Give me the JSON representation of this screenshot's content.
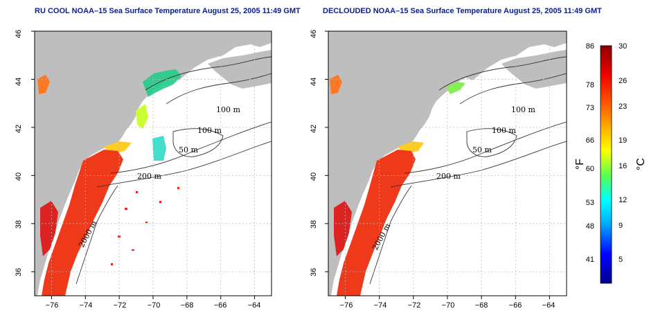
{
  "panels": [
    {
      "id": "left",
      "title": "RU COOL NOAA–15 Sea Surface Temperature August 25, 2005 11:49 GMT",
      "contour_labels": [
        "100 m",
        "100 m",
        "50 m",
        "200 m",
        "2000 m"
      ]
    },
    {
      "id": "right",
      "title": "DECLOUDED NOAA–15 Sea Surface Temperature August 25, 2005 11:49 GMT",
      "contour_labels": [
        "100 m",
        "100 m",
        "50 m",
        "200 m",
        "2000 m"
      ]
    }
  ],
  "axes": {
    "lon_ticks": [
      "−76",
      "−74",
      "−72",
      "−70",
      "−68",
      "−66",
      "−64"
    ],
    "lat_ticks": [
      "46",
      "44",
      "42",
      "40",
      "38",
      "36"
    ],
    "lon_range": [
      -77,
      -63
    ],
    "lat_range": [
      35,
      46
    ]
  },
  "colorbar": {
    "fahrenheit_ticks": [
      "86",
      "78",
      "73",
      "66",
      "60",
      "53",
      "48",
      "41"
    ],
    "celsius_ticks": [
      "30",
      "26",
      "23",
      "19",
      "16",
      "12",
      "9",
      "5"
    ],
    "left_unit": "°F",
    "right_unit": "°C",
    "range_celsius": [
      2,
      30
    ],
    "colors": [
      "#00008b",
      "#0000ff",
      "#00aaff",
      "#00ffff",
      "#55ff55",
      "#ffff00",
      "#ffaa00",
      "#ff5500",
      "#ee0000",
      "#8b0000"
    ]
  },
  "colors": {
    "land": "#bebebe",
    "ocean": "#ffffff",
    "title": "#0b1d8c",
    "grid": "#bbbbbb"
  }
}
